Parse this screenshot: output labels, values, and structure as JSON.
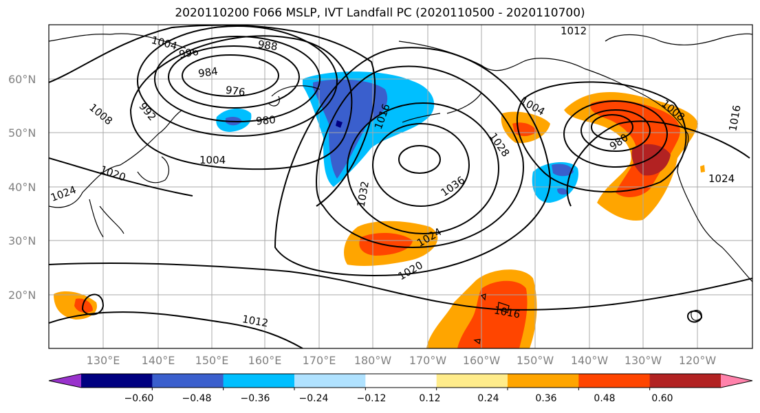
{
  "title": "2020110200 F066 MSLP, IVT Landfall PC (2020110500 - 2020110700)",
  "lat_labels": [
    "60°N",
    "50°N",
    "40°N",
    "30°N",
    "20°N"
  ],
  "lon_labels": [
    "130°E",
    "140°E",
    "150°E",
    "160°E",
    "170°E",
    "180°W",
    "170°W",
    "160°W",
    "150°W",
    "140°W",
    "130°W",
    "120°W"
  ],
  "colorbar": {
    "ticks": [
      "−0.60",
      "−0.48",
      "−0.36",
      "−0.24",
      "−0.12",
      "0.12",
      "0.24",
      "0.36",
      "0.48",
      "0.60"
    ],
    "colors": [
      "#9932cc",
      "#000080",
      "#3a5fcd",
      "#00bfff",
      "#b0e2ff",
      "#ffffff",
      "#ffec8b",
      "#ffa500",
      "#ff4500",
      "#b22222",
      "#ff82ab"
    ]
  },
  "contour_labels": [
    "1004",
    "996",
    "988",
    "984",
    "976",
    "980",
    "1008",
    "992",
    "1004",
    "1016",
    "1020",
    "1024",
    "1032",
    "1036",
    "1028",
    "1004",
    "980",
    "1008",
    "1024",
    "1024",
    "1020",
    "1012",
    "1016",
    "1012",
    "1016"
  ]
}
